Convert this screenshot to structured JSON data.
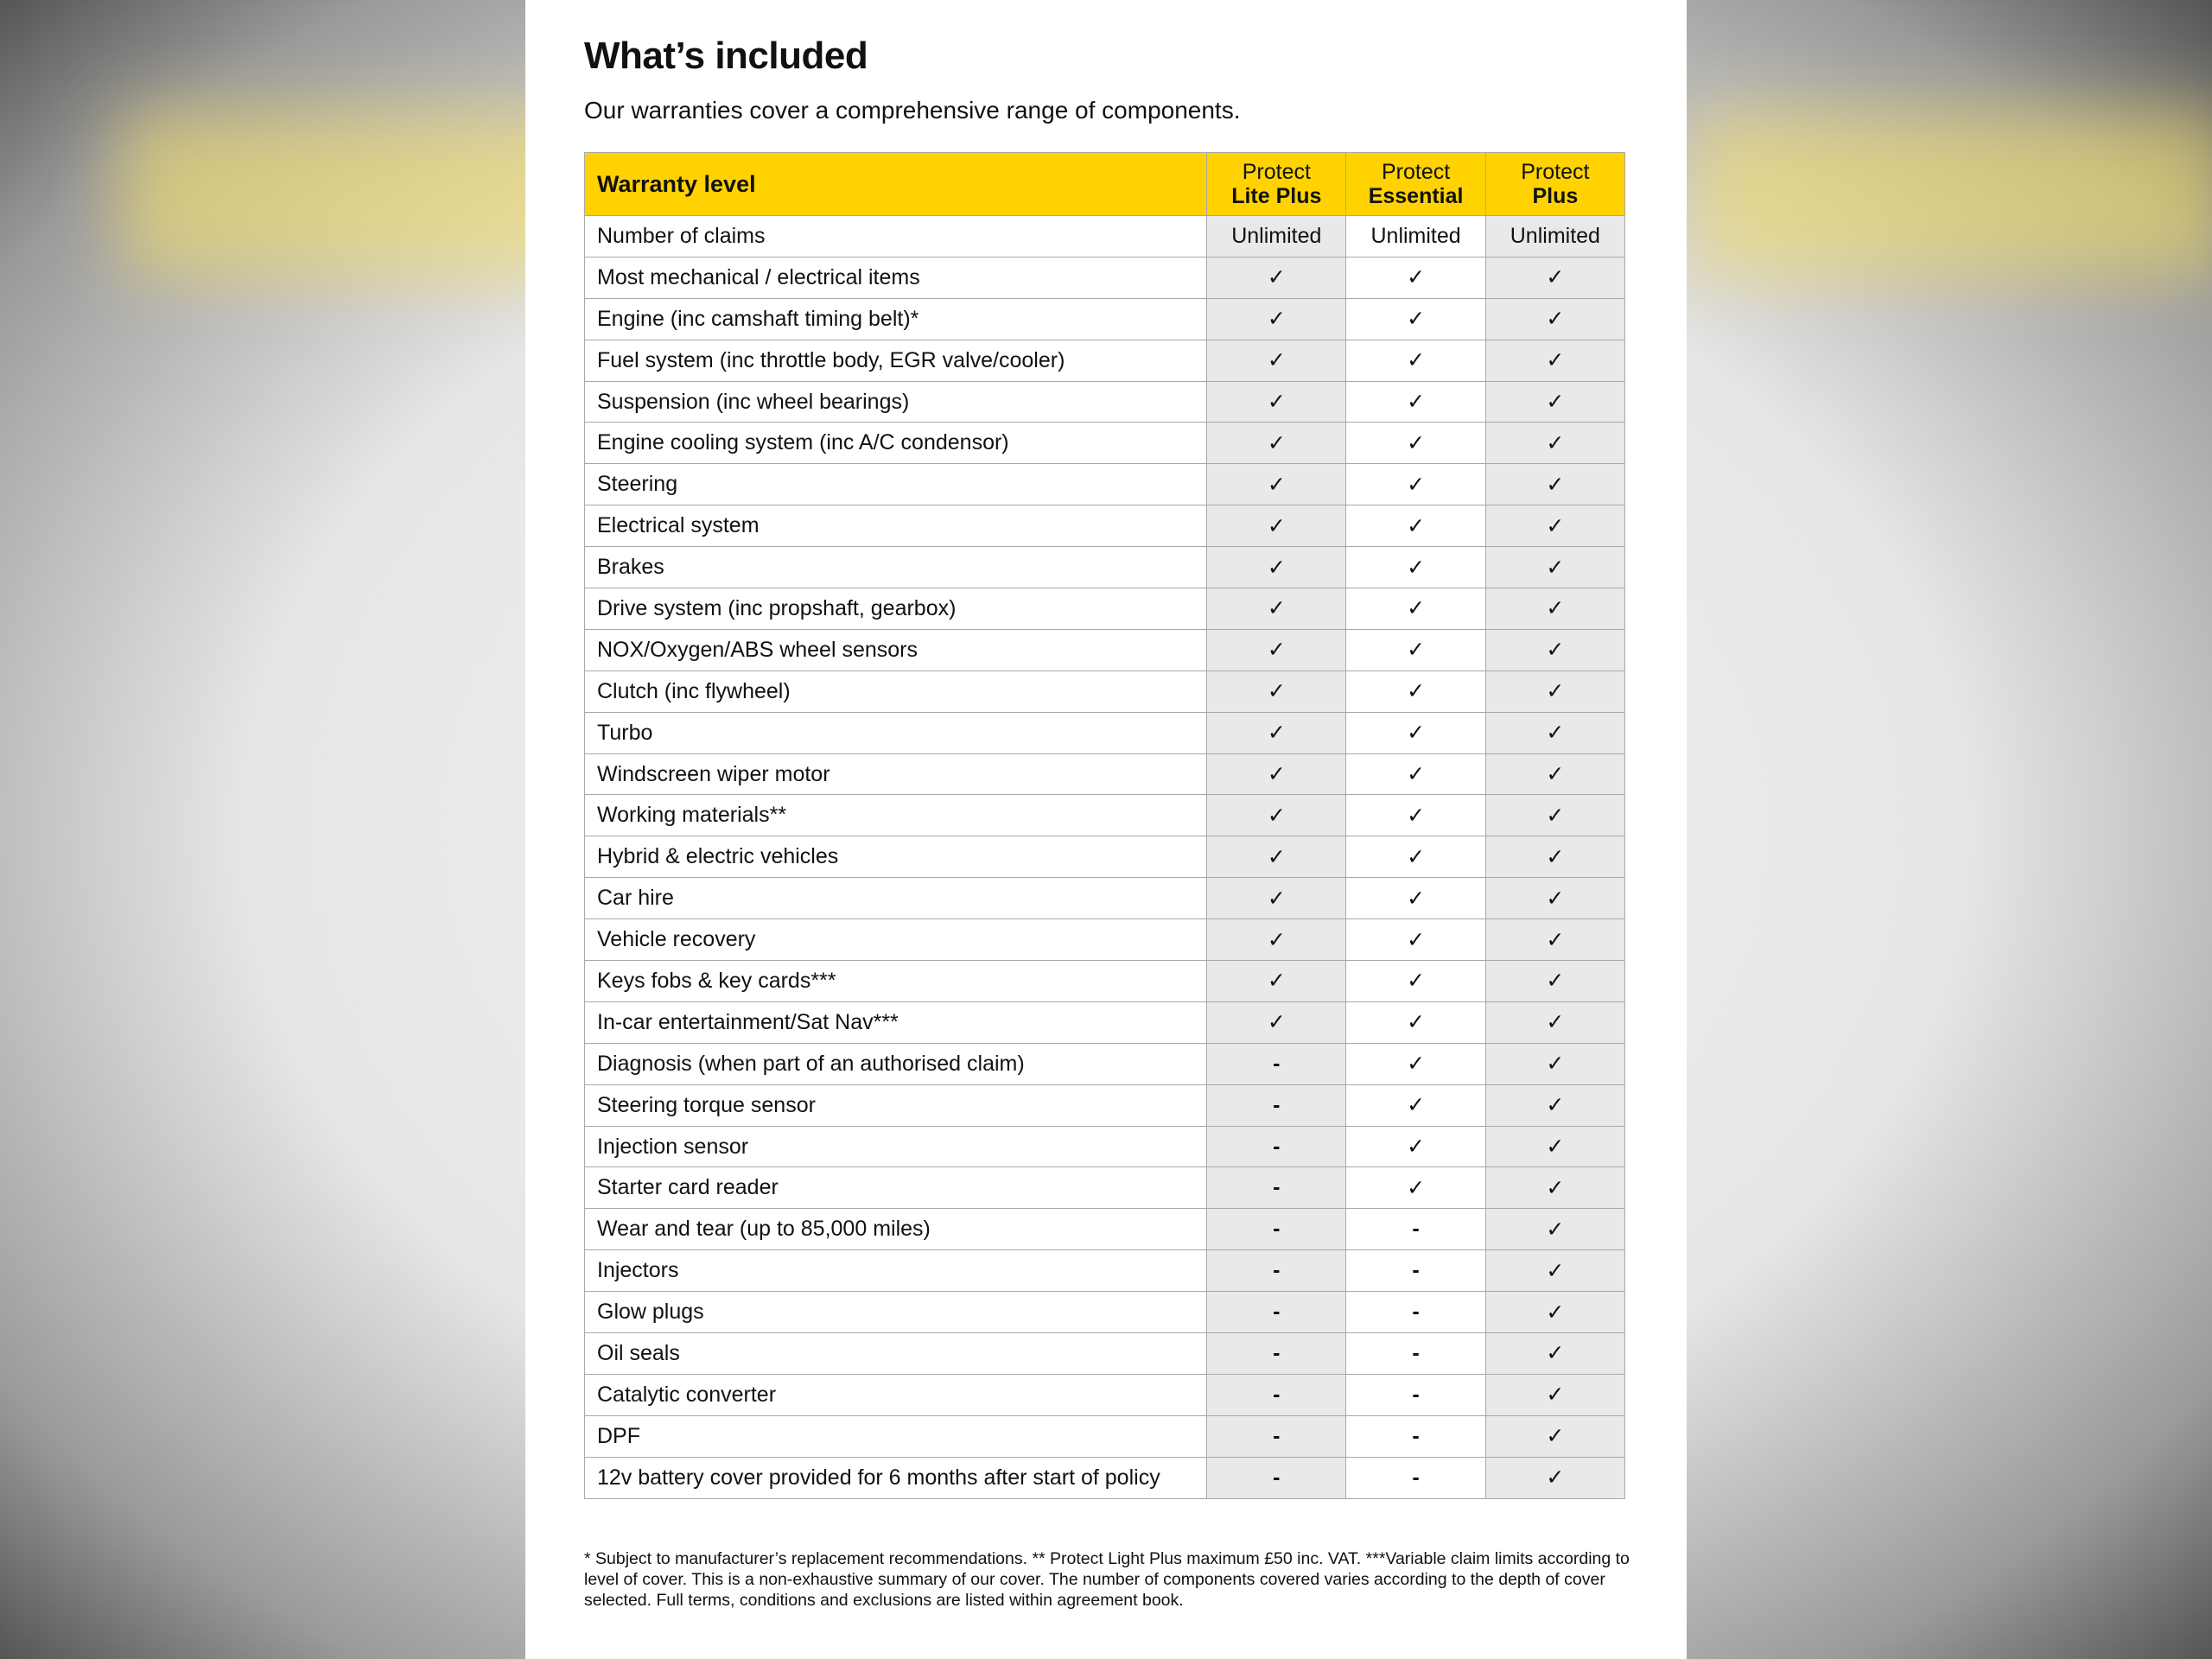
{
  "title": "What’s included",
  "subtitle": "Our warranties cover a comprehensive range of components.",
  "table": {
    "header": {
      "label": "Warranty level",
      "plans": [
        {
          "line1": "Protect",
          "line2": "Lite Plus"
        },
        {
          "line1": "Protect",
          "line2": "Essential"
        },
        {
          "line1": "Protect",
          "line2": "Plus"
        }
      ]
    },
    "rows": [
      {
        "label": "Number of claims",
        "values": [
          "Unlimited",
          "Unlimited",
          "Unlimited"
        ]
      },
      {
        "label": "Most mechanical / electrical items",
        "values": [
          "✓",
          "✓",
          "✓"
        ]
      },
      {
        "label": "Engine (inc camshaft timing belt)*",
        "values": [
          "✓",
          "✓",
          "✓"
        ]
      },
      {
        "label": "Fuel system (inc throttle body, EGR valve/cooler)",
        "values": [
          "✓",
          "✓",
          "✓"
        ]
      },
      {
        "label": "Suspension (inc wheel bearings)",
        "values": [
          "✓",
          "✓",
          "✓"
        ]
      },
      {
        "label": "Engine cooling system (inc A/C condensor)",
        "values": [
          "✓",
          "✓",
          "✓"
        ]
      },
      {
        "label": "Steering",
        "values": [
          "✓",
          "✓",
          "✓"
        ]
      },
      {
        "label": "Electrical system",
        "values": [
          "✓",
          "✓",
          "✓"
        ]
      },
      {
        "label": "Brakes",
        "values": [
          "✓",
          "✓",
          "✓"
        ]
      },
      {
        "label": "Drive system (inc propshaft, gearbox)",
        "values": [
          "✓",
          "✓",
          "✓"
        ]
      },
      {
        "label": "NOX/Oxygen/ABS wheel sensors",
        "values": [
          "✓",
          "✓",
          "✓"
        ]
      },
      {
        "label": "Clutch (inc flywheel)",
        "values": [
          "✓",
          "✓",
          "✓"
        ]
      },
      {
        "label": "Turbo",
        "values": [
          "✓",
          "✓",
          "✓"
        ]
      },
      {
        "label": "Windscreen wiper motor",
        "values": [
          "✓",
          "✓",
          "✓"
        ]
      },
      {
        "label": "Working materials**",
        "values": [
          "✓",
          "✓",
          "✓"
        ]
      },
      {
        "label": "Hybrid & electric vehicles",
        "values": [
          "✓",
          "✓",
          "✓"
        ]
      },
      {
        "label": "Car hire",
        "values": [
          "✓",
          "✓",
          "✓"
        ]
      },
      {
        "label": "Vehicle recovery",
        "values": [
          "✓",
          "✓",
          "✓"
        ]
      },
      {
        "label": "Keys fobs & key cards***",
        "values": [
          "✓",
          "✓",
          "✓"
        ]
      },
      {
        "label": "In-car entertainment/Sat Nav***",
        "values": [
          "✓",
          "✓",
          "✓"
        ]
      },
      {
        "label": "Diagnosis (when part of an authorised claim)",
        "values": [
          "-",
          "✓",
          "✓"
        ]
      },
      {
        "label": "Steering torque sensor",
        "values": [
          "-",
          "✓",
          "✓"
        ]
      },
      {
        "label": "Injection sensor",
        "values": [
          "-",
          "✓",
          "✓"
        ]
      },
      {
        "label": "Starter card reader",
        "values": [
          "-",
          "✓",
          "✓"
        ]
      },
      {
        "label": "Wear and tear (up to 85,000 miles)",
        "values": [
          "-",
          "-",
          "✓"
        ]
      },
      {
        "label": "Injectors",
        "values": [
          "-",
          "-",
          "✓"
        ]
      },
      {
        "label": "Glow plugs",
        "values": [
          "-",
          "-",
          "✓"
        ]
      },
      {
        "label": "Oil seals",
        "values": [
          "-",
          "-",
          "✓"
        ]
      },
      {
        "label": "Catalytic converter",
        "values": [
          "-",
          "-",
          "✓"
        ]
      },
      {
        "label": "DPF",
        "values": [
          "-",
          "-",
          "✓"
        ]
      },
      {
        "label": "12v battery cover provided for 6 months after start of policy",
        "values": [
          "-",
          "-",
          "✓"
        ]
      }
    ]
  },
  "footnote": "* Subject to manufacturer’s replacement recommendations. ** Protect Light Plus maximum £50 inc. VAT. ***Variable claim limits according to level of cover. This is a non-exhaustive summary of our cover. The number of components covered varies according to the depth of cover selected. Full terms, conditions and exclusions are listed within agreement book.",
  "colors": {
    "header": "#ffd200",
    "shaded_column": "#e9e9e9"
  }
}
